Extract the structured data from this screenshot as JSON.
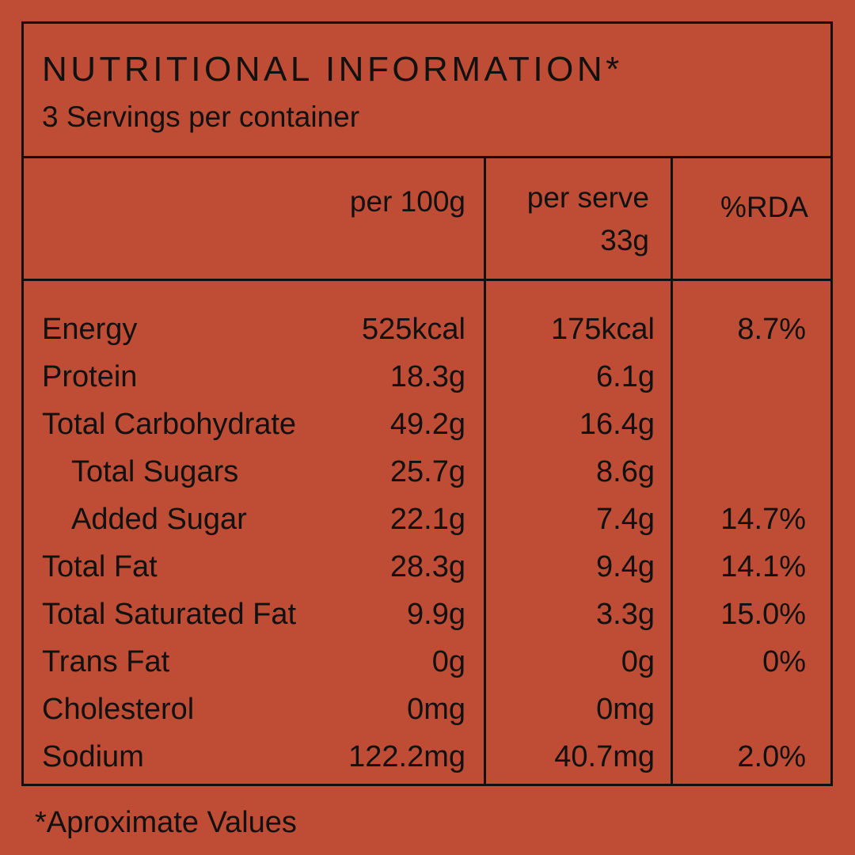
{
  "header": {
    "title": "NUTRITIONAL INFORMATION*",
    "servings": "3 Servings per container"
  },
  "columns": {
    "per_100g": "per 100g",
    "per_serve_line1": "per serve",
    "per_serve_line2": "33g",
    "rda": "%RDA"
  },
  "rows": [
    {
      "name": "Energy",
      "per_100g": "525kcal",
      "per_serve": "175kcal",
      "rda": "8.7%",
      "indent": false
    },
    {
      "name": "Protein",
      "per_100g": "18.3g",
      "per_serve": "6.1g",
      "rda": "",
      "indent": false
    },
    {
      "name": "Total Carbohydrate",
      "per_100g": "49.2g",
      "per_serve": "16.4g",
      "rda": "",
      "indent": false
    },
    {
      "name": "Total Sugars",
      "per_100g": "25.7g",
      "per_serve": "8.6g",
      "rda": "",
      "indent": true
    },
    {
      "name": "Added Sugar",
      "per_100g": "22.1g",
      "per_serve": "7.4g",
      "rda": "14.7%",
      "indent": true
    },
    {
      "name": "Total Fat",
      "per_100g": "28.3g",
      "per_serve": "9.4g",
      "rda": "14.1%",
      "indent": false
    },
    {
      "name": "Total Saturated Fat",
      "per_100g": "9.9g",
      "per_serve": "3.3g",
      "rda": "15.0%",
      "indent": false
    },
    {
      "name": "Trans Fat",
      "per_100g": "0g",
      "per_serve": "0g",
      "rda": "0%",
      "indent": false
    },
    {
      "name": "Cholesterol",
      "per_100g": "0mg",
      "per_serve": "0mg",
      "rda": "",
      "indent": false
    },
    {
      "name": "Sodium",
      "per_100g": "122.2mg",
      "per_serve": "40.7mg",
      "rda": "2.0%",
      "indent": false
    }
  ],
  "footnote": "*Aproximate Values",
  "colors": {
    "background": "#bf4d35",
    "ink": "#111111"
  }
}
